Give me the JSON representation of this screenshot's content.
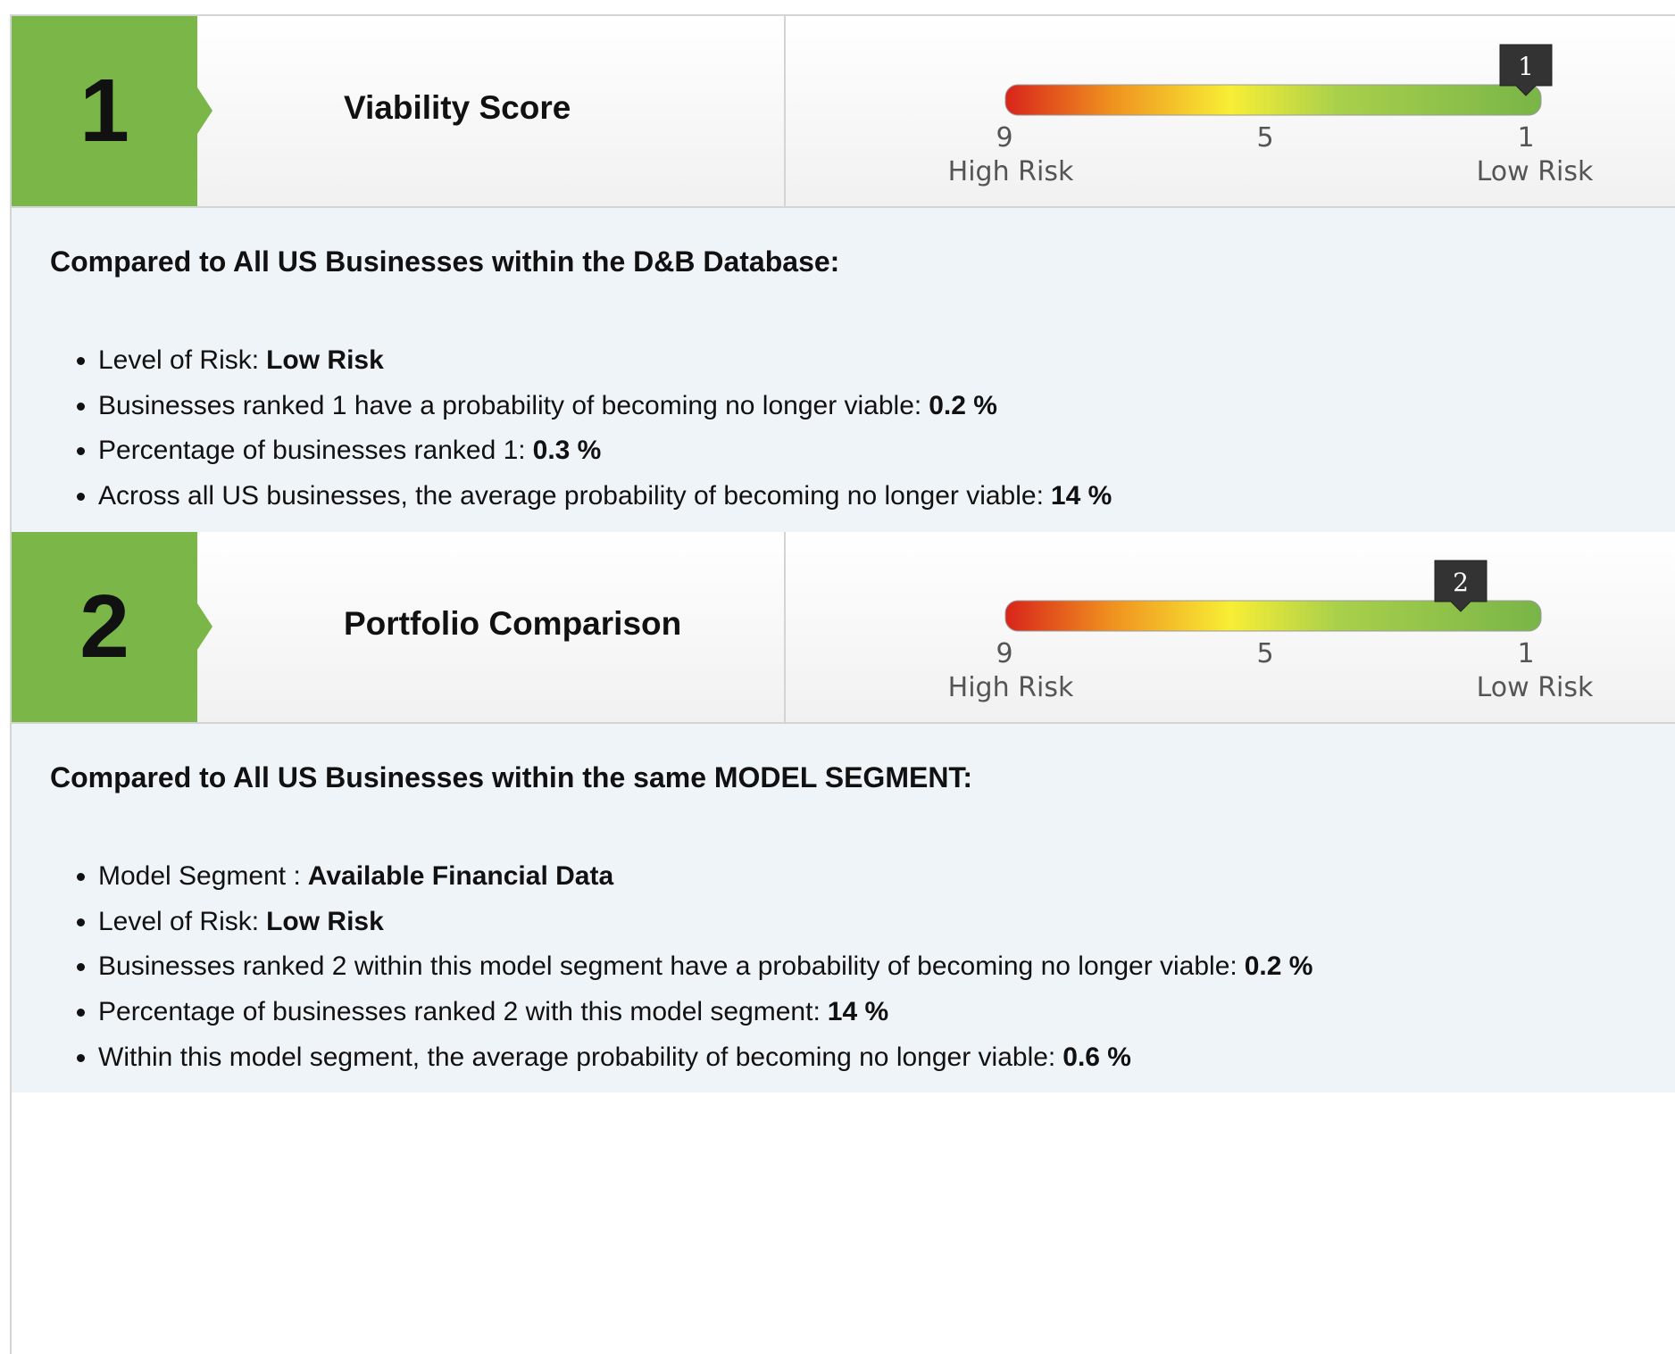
{
  "sections": [
    {
      "number": "1",
      "title": "Viability Score",
      "gauge": {
        "value": 1,
        "range": [
          9,
          1
        ],
        "ticks": [
          9,
          5,
          1
        ],
        "left_label": "High Risk",
        "right_label": "Low Risk"
      },
      "heading": "Compared to All US Businesses within the D&B Database:",
      "items": [
        {
          "label": "Level of Risk:",
          "value": "Low Risk"
        },
        {
          "label": "Businesses ranked 1 have a probability of becoming no longer viable:",
          "value": "0.2 %"
        },
        {
          "label": "Percentage of businesses ranked 1:",
          "value": "0.3 %"
        },
        {
          "label": "Across all US businesses, the average probability of becoming no longer viable:",
          "value": "14 %"
        }
      ]
    },
    {
      "number": "2",
      "title": "Portfolio Comparison",
      "gauge": {
        "value": 2,
        "range": [
          9,
          1
        ],
        "ticks": [
          9,
          5,
          1
        ],
        "left_label": "High Risk",
        "right_label": "Low Risk"
      },
      "heading": "Compared to All US Businesses within the same MODEL SEGMENT:",
      "items": [
        {
          "label": "Model Segment :",
          "value": "Available Financial Data"
        },
        {
          "label": "Level of Risk:",
          "value": "Low Risk"
        },
        {
          "label": "Businesses ranked 2 within this model segment have a probability of becoming no longer viable:",
          "value": "0.2 %"
        },
        {
          "label": "Percentage of businesses ranked 2 with this model segment:",
          "value": "14 %"
        },
        {
          "label": "Within this model segment, the average probability of becoming no longer viable:",
          "value": "0.6 %"
        }
      ]
    }
  ]
}
